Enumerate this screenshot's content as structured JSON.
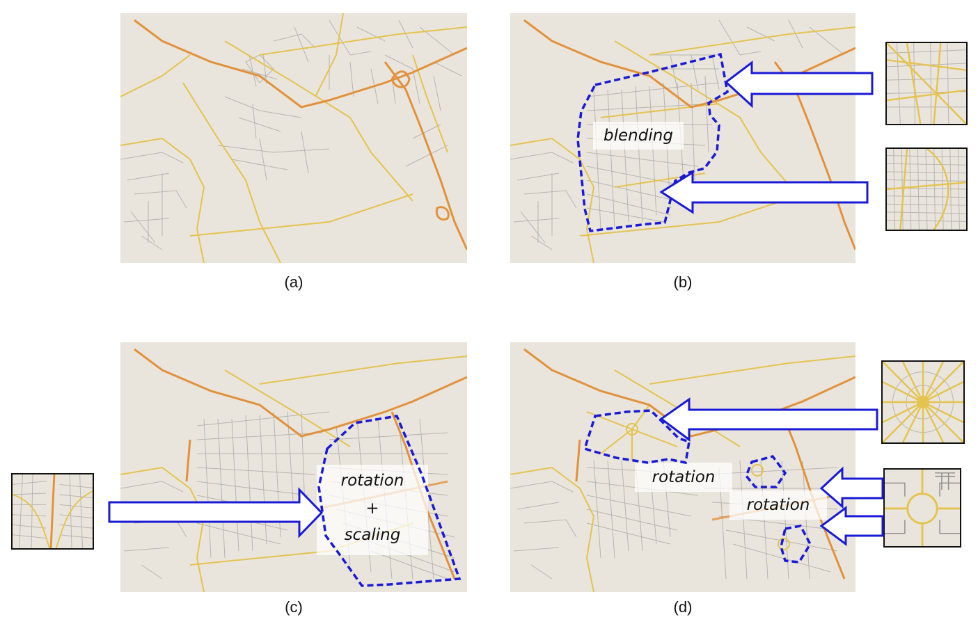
{
  "captions": {
    "a": "(a)",
    "b": "(b)",
    "c": "(c)",
    "d": "(d)"
  },
  "labels": {
    "blending": "blending",
    "rotation_scaling_1": "rotation",
    "rotation_scaling_2": "+",
    "rotation_scaling_3": "scaling",
    "rotation_d1": "rotation",
    "rotation_d2": "rotation"
  },
  "colors": {
    "map_background": "#e9e5dc",
    "minor_road": "#b7b5b0",
    "major_road": "#e5c34f",
    "highway": "#e2913b",
    "outline_blue": "#1a1ad6"
  }
}
